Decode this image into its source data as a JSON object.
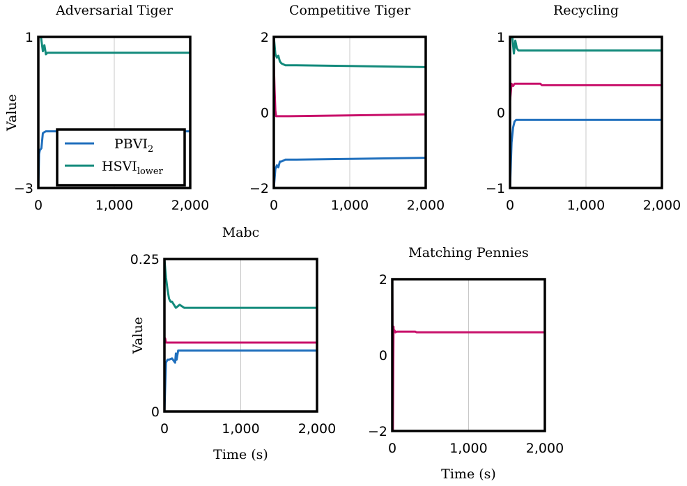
{
  "colors": {
    "pbvi": "#1f6fbd",
    "hsvi": "#128a7b",
    "magenta": "#c8106a",
    "grid": "#c8c8c8",
    "frame": "#000000"
  },
  "legend": {
    "items": [
      {
        "label": "PBVI",
        "sub": "2",
        "color": "#1f6fbd"
      },
      {
        "label": "HSVI",
        "sub": "lower",
        "color": "#128a7b"
      }
    ]
  },
  "chart_data": [
    {
      "type": "line",
      "title": "Adversarial Tiger",
      "xlabel": "",
      "ylabel": "Value",
      "xlim": [
        0,
        2000
      ],
      "ylim": [
        -3,
        1
      ],
      "xticks": [
        0,
        1000,
        2000
      ],
      "xtick_labels": [
        "0",
        "1,000",
        "2,000"
      ],
      "yticks": [
        -3,
        1
      ],
      "ytick_labels": [
        "−3",
        "1"
      ],
      "grid": "x",
      "legend_position": "bottom-left",
      "series": [
        {
          "key": "hsvi",
          "color": "#128a7b",
          "x": [
            0,
            35,
            60,
            80,
            100,
            120,
            160,
            2000
          ],
          "y": [
            1,
            1,
            0.62,
            0.78,
            0.54,
            0.58,
            0.58,
            0.58
          ]
        },
        {
          "key": "pbvi",
          "color": "#1f6fbd",
          "x": [
            0,
            10,
            20,
            40,
            60,
            80,
            100,
            140,
            2000
          ],
          "y": [
            -3,
            -2.1,
            -2.0,
            -1.95,
            -1.55,
            -1.52,
            -1.5,
            -1.5,
            -1.5
          ]
        }
      ]
    },
    {
      "type": "line",
      "title": "Competitive Tiger",
      "xlabel": "",
      "ylabel": "",
      "xlim": [
        0,
        2000
      ],
      "ylim": [
        -2,
        2
      ],
      "xticks": [
        0,
        1000,
        2000
      ],
      "xtick_labels": [
        "0",
        "1,000",
        "2,000"
      ],
      "yticks": [
        -2,
        0,
        2
      ],
      "ytick_labels": [
        "−2",
        "0",
        "2"
      ],
      "grid": "x",
      "series": [
        {
          "key": "hsvi",
          "color": "#128a7b",
          "x": [
            0,
            20,
            40,
            60,
            80,
            100,
            150,
            300,
            2000
          ],
          "y": [
            2,
            1.55,
            1.45,
            1.5,
            1.35,
            1.3,
            1.25,
            1.25,
            1.2
          ]
        },
        {
          "key": "magenta",
          "color": "#c8106a",
          "x": [
            0,
            10,
            20,
            30,
            60,
            200,
            2000
          ],
          "y": [
            1.3,
            0.6,
            0.05,
            -0.1,
            -0.1,
            -0.1,
            -0.05
          ]
        },
        {
          "key": "pbvi",
          "color": "#1f6fbd",
          "x": [
            0,
            20,
            40,
            60,
            80,
            100,
            150,
            300,
            2000
          ],
          "y": [
            -2,
            -1.5,
            -1.4,
            -1.45,
            -1.3,
            -1.3,
            -1.25,
            -1.25,
            -1.2
          ]
        }
      ]
    },
    {
      "type": "line",
      "title": "Recycling",
      "xlabel": "",
      "ylabel": "",
      "xlim": [
        0,
        2000
      ],
      "ylim": [
        -1,
        1
      ],
      "xticks": [
        0,
        1000,
        2000
      ],
      "xtick_labels": [
        "0",
        "1,000",
        "2,000"
      ],
      "yticks": [
        -1,
        0,
        1
      ],
      "ytick_labels": [
        "−1",
        "0",
        "1"
      ],
      "grid": "x",
      "series": [
        {
          "key": "hsvi",
          "color": "#128a7b",
          "x": [
            0,
            30,
            50,
            70,
            90,
            110,
            150,
            2000
          ],
          "y": [
            1,
            1,
            0.78,
            0.95,
            0.85,
            0.82,
            0.82,
            0.82
          ]
        },
        {
          "key": "magenta",
          "color": "#c8106a",
          "x": [
            0,
            20,
            40,
            60,
            400,
            420,
            2000
          ],
          "y": [
            0.15,
            0.38,
            0.35,
            0.38,
            0.38,
            0.36,
            0.36
          ]
        },
        {
          "key": "pbvi",
          "color": "#1f6fbd",
          "x": [
            0,
            20,
            40,
            60,
            80,
            120,
            2000
          ],
          "y": [
            -1,
            -0.4,
            -0.2,
            -0.12,
            -0.1,
            -0.1,
            -0.1
          ]
        }
      ]
    },
    {
      "type": "line",
      "title": "Mabc",
      "xlabel": "Time (s)",
      "ylabel": "Value",
      "xlim": [
        0,
        2000
      ],
      "ylim": [
        0,
        0.25
      ],
      "xticks": [
        0,
        1000,
        2000
      ],
      "xtick_labels": [
        "0",
        "1,000",
        "2,000"
      ],
      "yticks": [
        0,
        0.25
      ],
      "ytick_labels": [
        "0",
        "0.25"
      ],
      "grid": "x",
      "series": [
        {
          "key": "hsvi",
          "color": "#128a7b",
          "x": [
            0,
            20,
            40,
            60,
            80,
            100,
            150,
            200,
            260,
            2000
          ],
          "y": [
            0.25,
            0.22,
            0.2,
            0.185,
            0.18,
            0.18,
            0.17,
            0.175,
            0.17,
            0.17
          ]
        },
        {
          "key": "magenta",
          "color": "#c8106a",
          "x": [
            0,
            5,
            10,
            20,
            40,
            60,
            2000
          ],
          "y": [
            0.12,
            0.115,
            0.12,
            0.113,
            0.113,
            0.113,
            0.113
          ]
        },
        {
          "key": "pbvi",
          "color": "#1f6fbd",
          "x": [
            0,
            10,
            20,
            40,
            60,
            100,
            140,
            150,
            160,
            180,
            200,
            2000
          ],
          "y": [
            0,
            0.04,
            0.08,
            0.085,
            0.085,
            0.087,
            0.08,
            0.095,
            0.085,
            0.1,
            0.1,
            0.1
          ]
        }
      ]
    },
    {
      "type": "line",
      "title": "Matching Pennies",
      "xlabel": "Time (s)",
      "ylabel": "",
      "xlim": [
        0,
        2000
      ],
      "ylim": [
        -2,
        2
      ],
      "xticks": [
        0,
        1000,
        2000
      ],
      "xtick_labels": [
        "0",
        "1,000",
        "2,000"
      ],
      "yticks": [
        -2,
        0,
        2
      ],
      "ytick_labels": [
        "−2",
        "0",
        "2"
      ],
      "grid": "x",
      "series": [
        {
          "key": "magenta",
          "color": "#c8106a",
          "x": [
            0,
            8,
            16,
            20,
            30,
            40,
            60,
            300,
            320,
            2000
          ],
          "y": [
            2,
            -2,
            0.75,
            0.6,
            0.65,
            0.6,
            0.62,
            0.62,
            0.6,
            0.6
          ]
        }
      ]
    }
  ]
}
